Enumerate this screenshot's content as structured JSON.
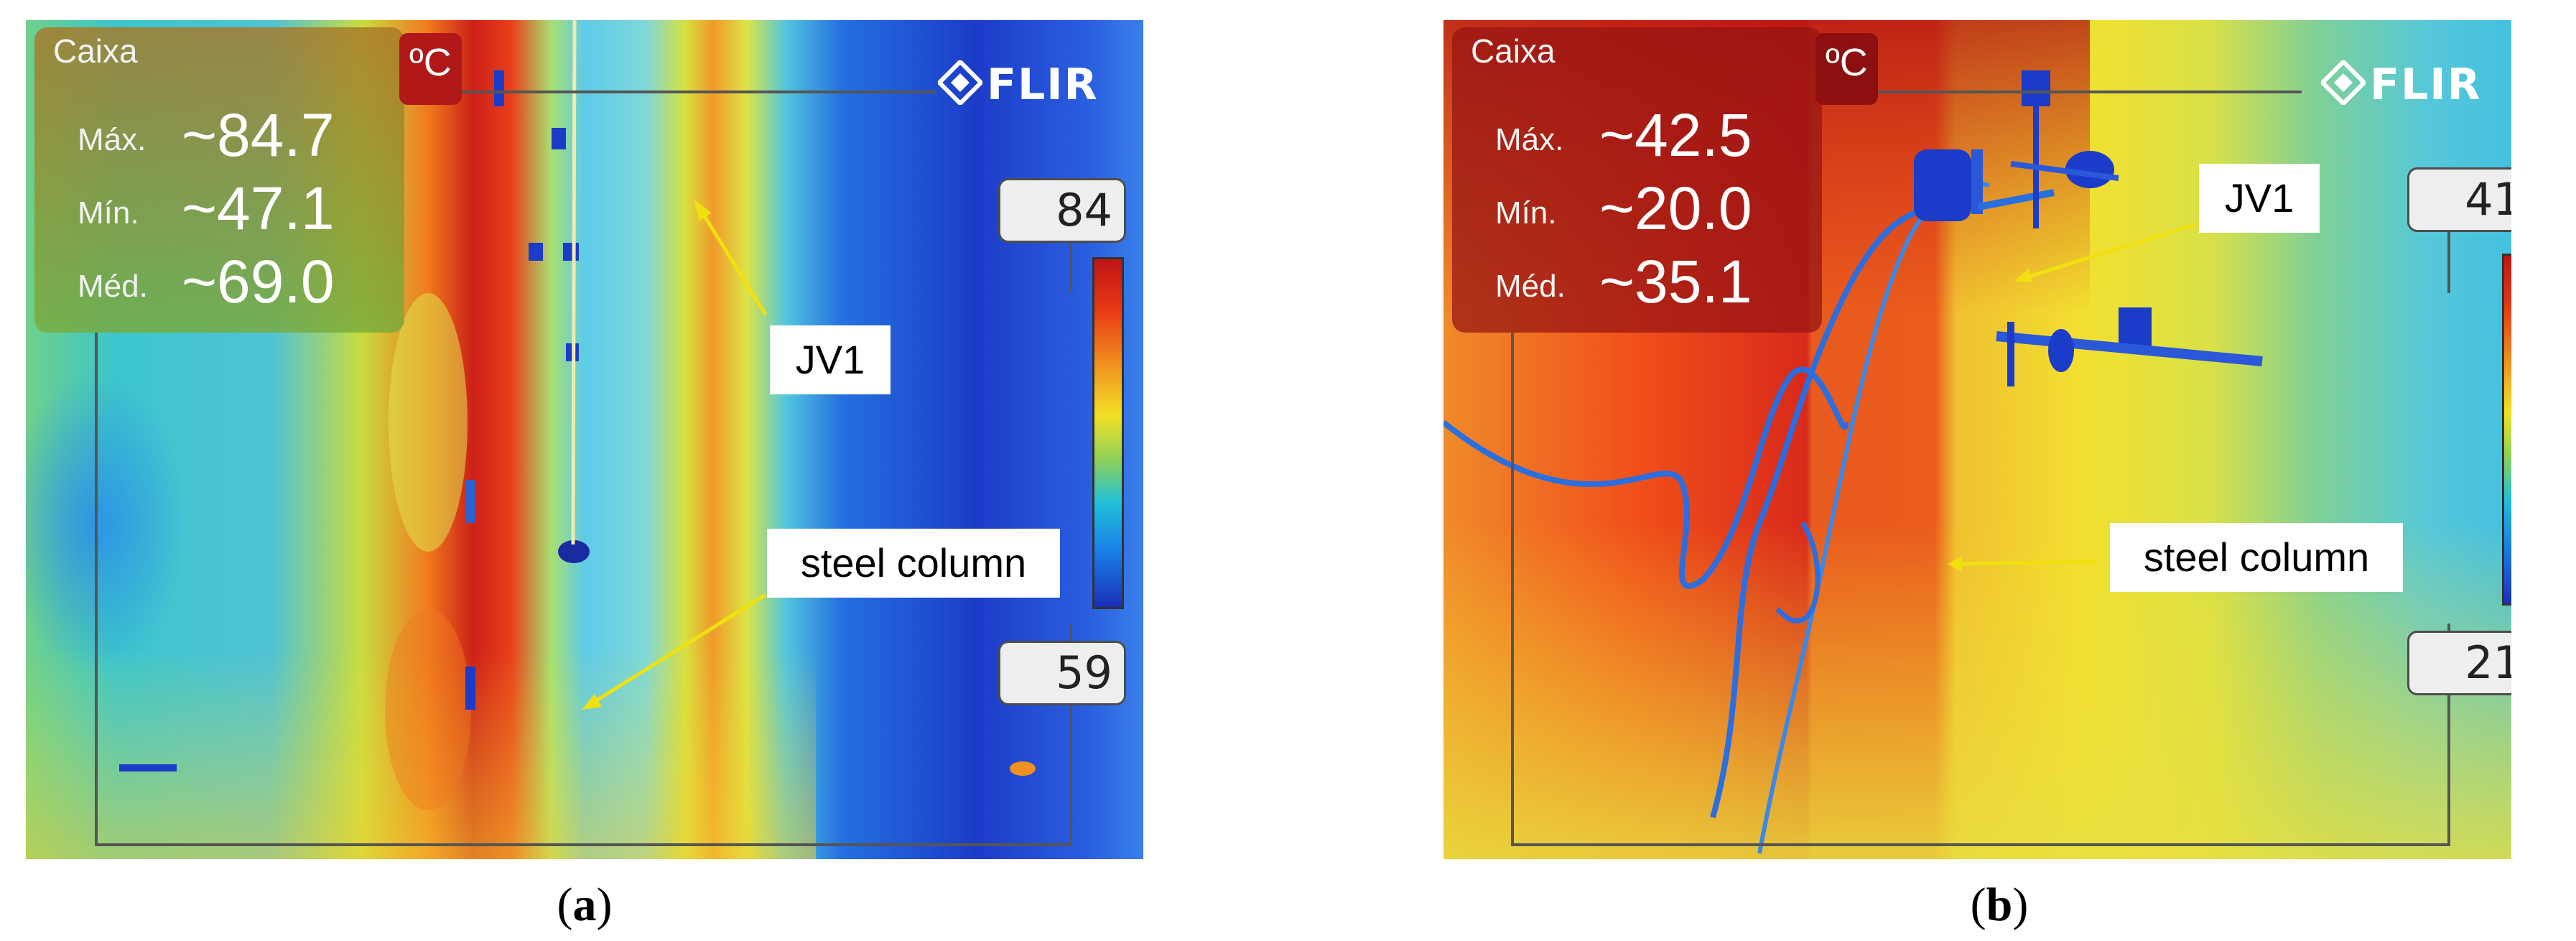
{
  "panels": [
    {
      "box_title": "Caixa",
      "unit": "ºC",
      "logo": "FLIR",
      "stats": [
        {
          "label": "Máx.",
          "value": "~84.7"
        },
        {
          "label": "Mín.",
          "value": "~47.1"
        },
        {
          "label": "Méd.",
          "value": "~69.0"
        }
      ],
      "scale_max": "84",
      "scale_min": "59",
      "labels": [
        "JV1",
        "steel column"
      ],
      "caption_letter": "a"
    },
    {
      "box_title": "Caixa",
      "unit": "ºC",
      "logo": "FLIR",
      "stats": [
        {
          "label": "Máx.",
          "value": "~42.5"
        },
        {
          "label": "Mín.",
          "value": "~20.0"
        },
        {
          "label": "Méd.",
          "value": "~35.1"
        }
      ],
      "scale_max": "41",
      "scale_min": "21",
      "labels": [
        "JV1",
        "steel column"
      ],
      "caption_letter": "b"
    }
  ],
  "colors": {
    "arrow": "#f0e010",
    "hot": "#d8281a",
    "cold": "#1a38c8"
  }
}
